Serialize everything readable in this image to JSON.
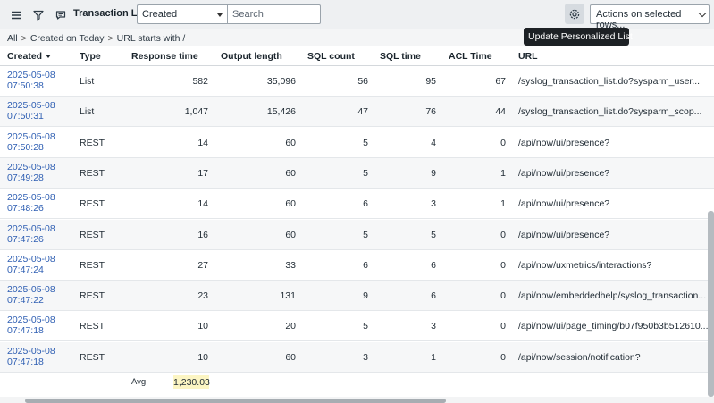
{
  "header": {
    "title": "Transaction Log",
    "field_select": "Created",
    "search_placeholder": "Search",
    "actions_select": "Actions on selected rows...",
    "tooltip": "Update Personalized List"
  },
  "breadcrumb": [
    "All",
    "Created on Today",
    "URL starts with /"
  ],
  "columns": [
    "Created",
    "Type",
    "Response time",
    "Output length",
    "SQL count",
    "SQL time",
    "ACL Time",
    "URL"
  ],
  "rows": [
    {
      "date": "2025-05-08",
      "time": "07:50:38",
      "type": "List",
      "response": "582",
      "output": "35,096",
      "sql_count": "56",
      "sql_time": "95",
      "acl": "67",
      "url": "/syslog_transaction_list.do?sysparm_user..."
    },
    {
      "date": "2025-05-08",
      "time": "07:50:31",
      "type": "List",
      "response": "1,047",
      "output": "15,426",
      "sql_count": "47",
      "sql_time": "76",
      "acl": "44",
      "url": "/syslog_transaction_list.do?sysparm_scop..."
    },
    {
      "date": "2025-05-08",
      "time": "07:50:28",
      "type": "REST",
      "response": "14",
      "output": "60",
      "sql_count": "5",
      "sql_time": "4",
      "acl": "0",
      "url": "/api/now/ui/presence?"
    },
    {
      "date": "2025-05-08",
      "time": "07:49:28",
      "type": "REST",
      "response": "17",
      "output": "60",
      "sql_count": "5",
      "sql_time": "9",
      "acl": "1",
      "url": "/api/now/ui/presence?"
    },
    {
      "date": "2025-05-08",
      "time": "07:48:26",
      "type": "REST",
      "response": "14",
      "output": "60",
      "sql_count": "6",
      "sql_time": "3",
      "acl": "1",
      "url": "/api/now/ui/presence?"
    },
    {
      "date": "2025-05-08",
      "time": "07:47:26",
      "type": "REST",
      "response": "16",
      "output": "60",
      "sql_count": "5",
      "sql_time": "5",
      "acl": "0",
      "url": "/api/now/ui/presence?"
    },
    {
      "date": "2025-05-08",
      "time": "07:47:24",
      "type": "REST",
      "response": "27",
      "output": "33",
      "sql_count": "6",
      "sql_time": "6",
      "acl": "0",
      "url": "/api/now/uxmetrics/interactions?"
    },
    {
      "date": "2025-05-08",
      "time": "07:47:22",
      "type": "REST",
      "response": "23",
      "output": "131",
      "sql_count": "9",
      "sql_time": "6",
      "acl": "0",
      "url": "/api/now/embeddedhelp/syslog_transaction..."
    },
    {
      "date": "2025-05-08",
      "time": "07:47:18",
      "type": "REST",
      "response": "10",
      "output": "20",
      "sql_count": "5",
      "sql_time": "3",
      "acl": "0",
      "url": "/api/now/ui/page_timing/b07f950b3b512610..."
    },
    {
      "date": "2025-05-08",
      "time": "07:47:18",
      "type": "REST",
      "response": "10",
      "output": "60",
      "sql_count": "3",
      "sql_time": "1",
      "acl": "0",
      "url": "/api/now/session/notification?"
    }
  ],
  "footer": {
    "avg_label": "Avg",
    "avg_value": "1,230.03"
  },
  "icons": [
    "hamburger-menu-icon",
    "filter-icon",
    "comment-icon",
    "gear-icon"
  ],
  "colors": {
    "link": "#2f5fb3",
    "tooltip_bg": "#1d2125",
    "avg_highlight": "#fcf5c3"
  }
}
